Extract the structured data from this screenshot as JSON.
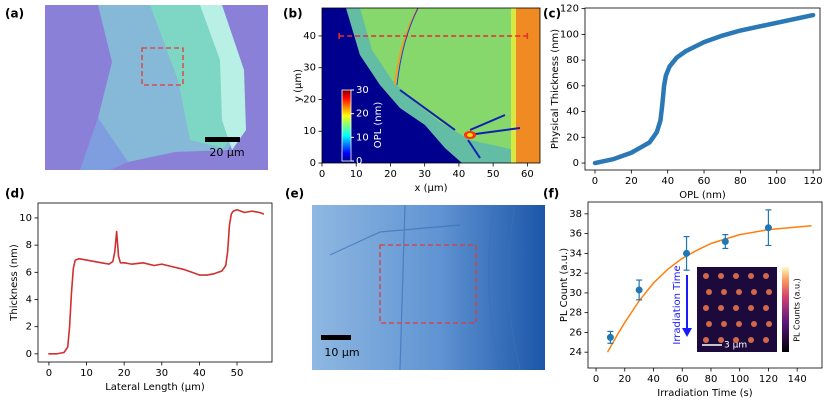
{
  "chart_data": [
    {
      "type": "image",
      "panel_label": "(a)",
      "scale_bar": "20 µm"
    },
    {
      "type": "heatmap",
      "panel_label": "(b)",
      "xlabel": "x (µm)",
      "ylabel": "y (µm)",
      "xlim": [
        0,
        63.7
      ],
      "ylim": [
        0,
        48.8
      ],
      "xticks": [
        0,
        10,
        20,
        30,
        40,
        50,
        60
      ],
      "yticks": [
        0,
        10,
        20,
        30,
        40
      ],
      "profile_line": {
        "x": [
          5,
          60
        ],
        "y": 40,
        "color": "#e03030"
      },
      "colorbar": {
        "label": "OPL (nm)",
        "lim": [
          0,
          30
        ],
        "ticks": [
          0,
          10,
          20,
          30
        ]
      }
    },
    {
      "type": "line",
      "panel_label": "(c)",
      "xlabel": "OPL (nm)",
      "ylabel": "Physical Thickness (nm)",
      "xlim": [
        -5.5,
        123.8
      ],
      "ylim": [
        -5.4,
        120.5
      ],
      "xticks": [
        0,
        20,
        40,
        60,
        80,
        100,
        120
      ],
      "yticks": [
        0,
        20,
        40,
        60,
        80,
        100,
        120
      ],
      "color": "#2a78b5",
      "x": [
        0,
        10,
        20,
        30,
        34,
        36,
        37,
        38,
        39,
        41,
        45,
        50,
        60,
        70,
        80,
        100,
        120
      ],
      "values": [
        0,
        3,
        8,
        16,
        24,
        33,
        45,
        60,
        68,
        75,
        82,
        87,
        94,
        99,
        103,
        109,
        115
      ]
    },
    {
      "type": "line",
      "panel_label": "(d)",
      "xlabel": "Lateral Length (µm)",
      "ylabel": "Thickness (nm)",
      "xlim": [
        -2.9,
        59.3
      ],
      "ylim": [
        -0.6,
        11.1
      ],
      "xticks": [
        0,
        10,
        20,
        30,
        40,
        50
      ],
      "yticks": [
        0,
        2,
        4,
        6,
        8,
        10
      ],
      "color": "#d03030",
      "x": [
        0,
        2,
        4,
        5,
        5.5,
        6,
        6.5,
        7,
        8,
        10,
        12,
        14,
        16,
        17,
        17.5,
        18,
        18.5,
        19,
        20,
        22,
        25,
        28,
        30,
        33,
        36,
        38,
        40,
        42,
        44,
        45,
        46,
        47,
        47.5,
        48,
        48.5,
        49,
        50,
        52,
        54,
        56,
        57
      ],
      "values": [
        0,
        0,
        0.1,
        0.5,
        2,
        4.5,
        6.3,
        6.9,
        7.0,
        6.9,
        6.8,
        6.7,
        6.6,
        6.8,
        7.5,
        9.0,
        7.2,
        6.7,
        6.7,
        6.6,
        6.7,
        6.5,
        6.6,
        6.4,
        6.2,
        6.0,
        5.8,
        5.8,
        5.9,
        6.0,
        6.1,
        6.5,
        7.5,
        9.5,
        10.3,
        10.5,
        10.6,
        10.4,
        10.5,
        10.4,
        10.3
      ]
    },
    {
      "type": "image",
      "panel_label": "(e)",
      "scale_bar": "10 µm"
    },
    {
      "type": "errorbar",
      "panel_label": "(f)",
      "xlabel": "Irradiation Time (s)",
      "ylabel": "PL Count (a.u.)",
      "xlim": [
        -5.6,
        157.3
      ],
      "ylim": [
        22.4,
        39.2
      ],
      "xticks": [
        0,
        20,
        40,
        60,
        80,
        100,
        120,
        140
      ],
      "yticks": [
        24,
        26,
        28,
        30,
        32,
        34,
        36,
        38
      ],
      "series": [
        {
          "color": "#1f77b4",
          "x": [
            10,
            30,
            63,
            90,
            120
          ],
          "values": [
            25.5,
            30.3,
            34.0,
            35.2,
            36.6
          ],
          "errors": [
            0.6,
            1.0,
            1.7,
            0.7,
            1.8
          ]
        },
        {
          "color": "#ff7f0e",
          "x": [
            8,
            15,
            20,
            30,
            40,
            50,
            60,
            70,
            80,
            100,
            120,
            150
          ],
          "values": [
            24.0,
            25.8,
            27.0,
            29.2,
            31.0,
            32.4,
            33.5,
            34.3,
            35.0,
            35.9,
            36.4,
            36.8
          ]
        }
      ],
      "inset": {
        "arrow_label": "Irradiation Time",
        "scale_bar": "3 µm",
        "colorbar_label": "PL Counts (a.u.)"
      }
    }
  ]
}
